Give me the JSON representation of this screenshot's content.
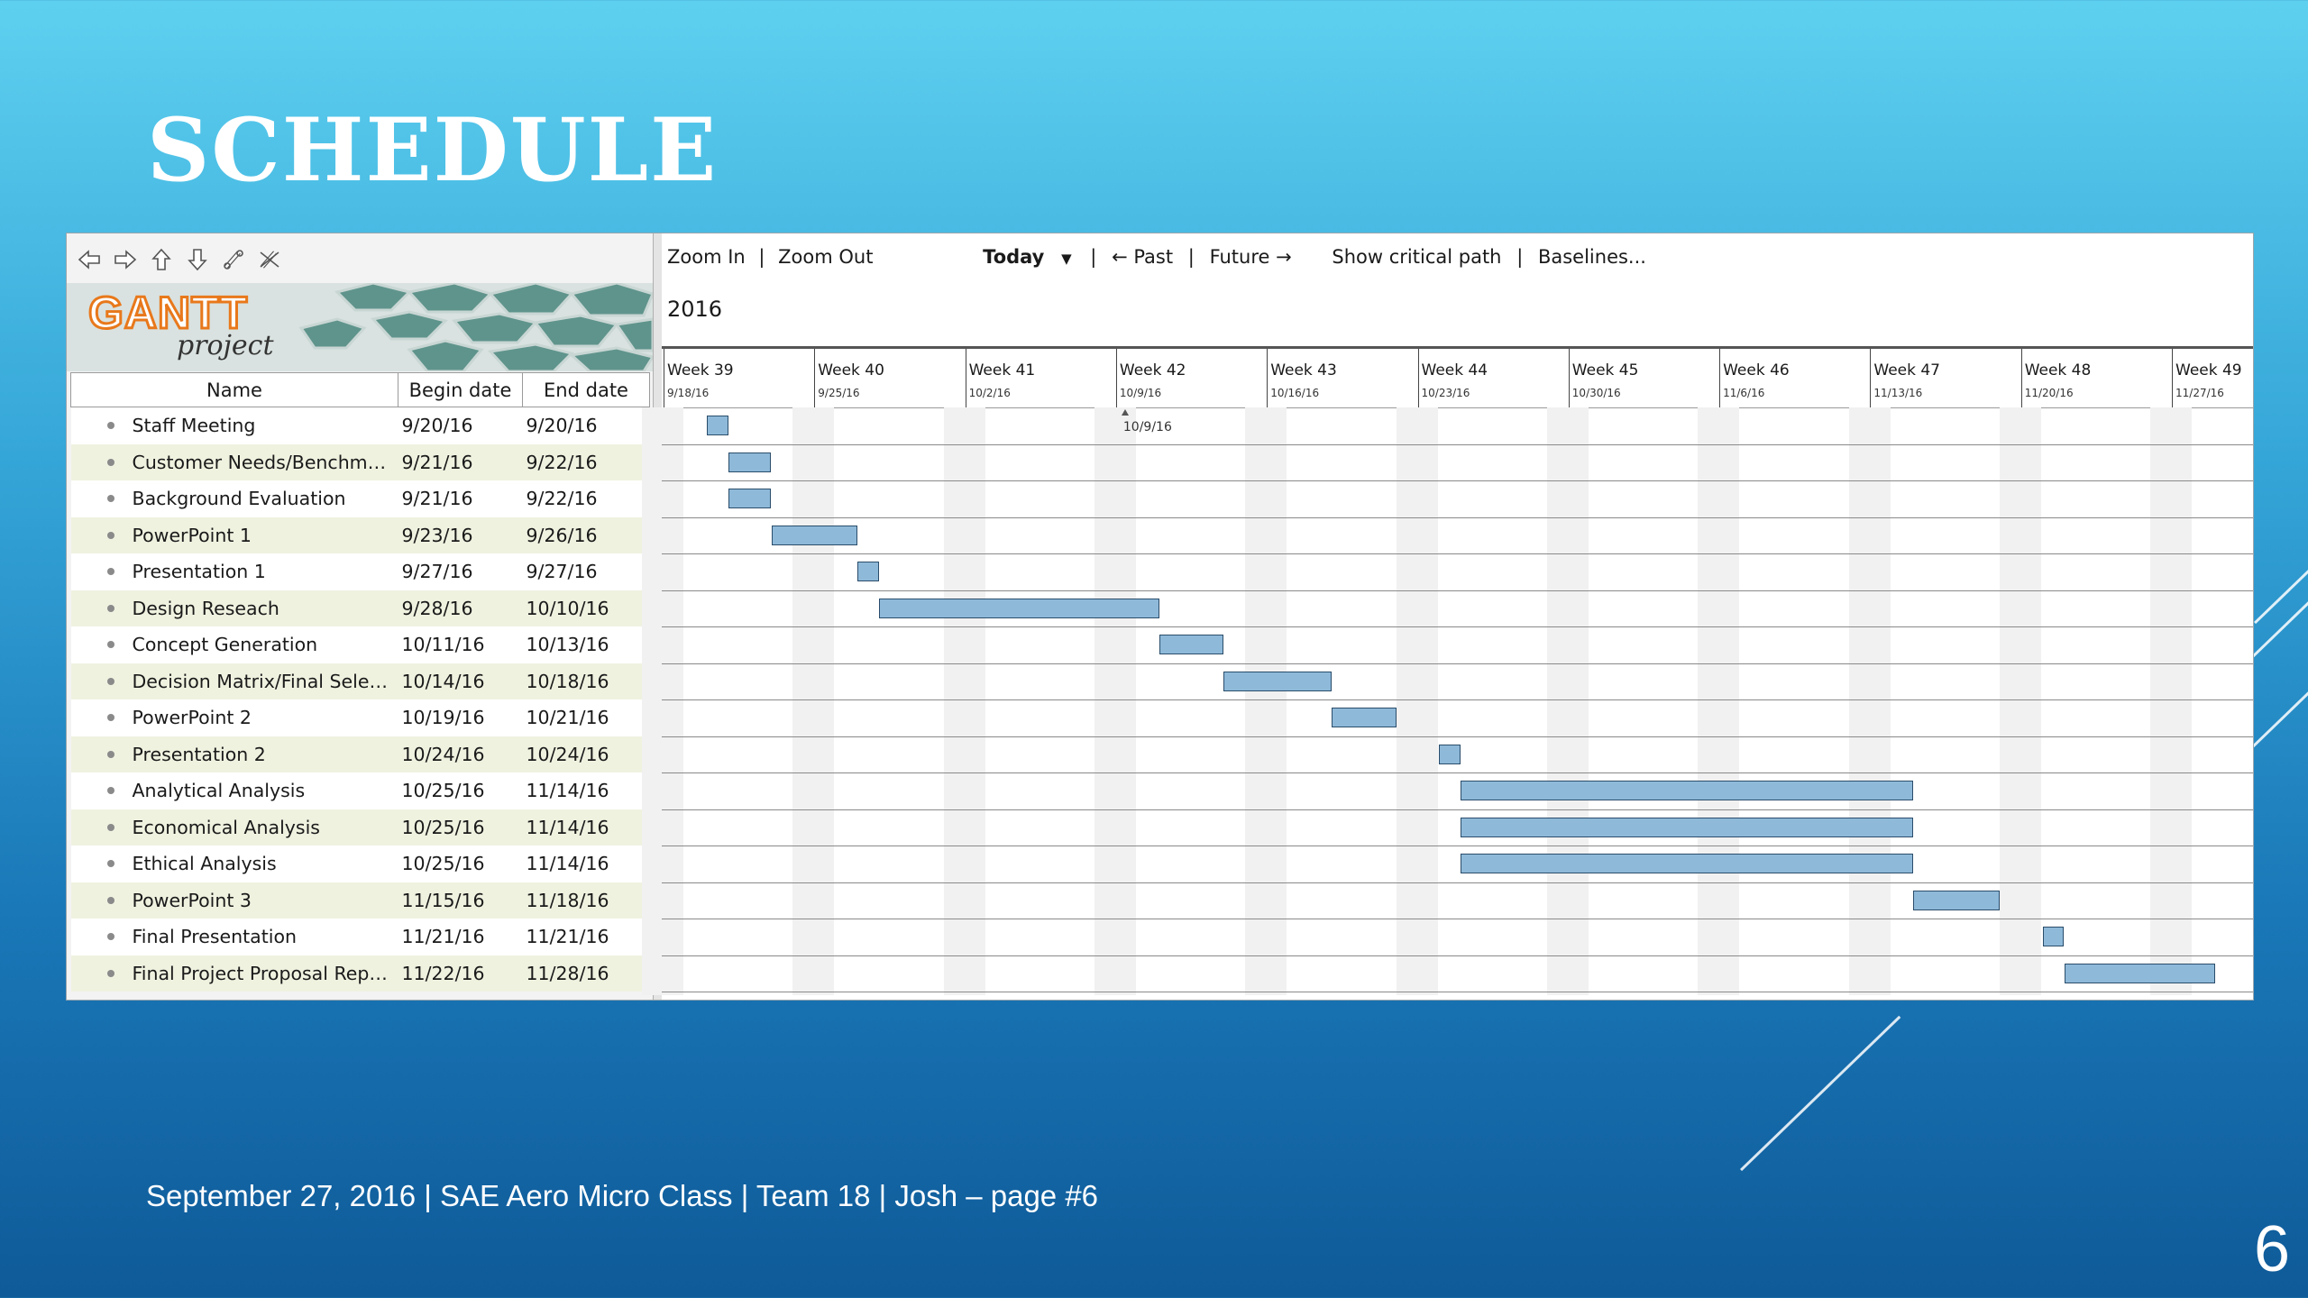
{
  "slide": {
    "title": "SCHEDULE",
    "footer": "September 27, 2016  |  SAE Aero Micro Class  |  Team 18 | Josh – page #6",
    "page_number": "6"
  },
  "gantt": {
    "logo": {
      "main": "GANTT",
      "sub": "project"
    },
    "toolbar_icons": [
      "left-arrow-icon",
      "right-arrow-icon",
      "up-arrow-icon",
      "down-arrow-icon",
      "link-icon",
      "unlink-icon"
    ],
    "view_toolbar": {
      "zoom_in": "Zoom In",
      "sep1": "|",
      "zoom_out": "Zoom Out",
      "today": "Today",
      "sep2": "|",
      "past": "← Past",
      "sep3": "|",
      "future": "Future →",
      "critical_path": "Show critical path",
      "sep4": "|",
      "baselines": "Baselines..."
    },
    "year": "2016",
    "columns": {
      "name": "Name",
      "begin": "Begin date",
      "end": "End date"
    },
    "weeks": [
      {
        "label": "Week 39",
        "date": "9/18/16"
      },
      {
        "label": "Week 40",
        "date": "9/25/16"
      },
      {
        "label": "Week 41",
        "date": "10/2/16"
      },
      {
        "label": "Week 42",
        "date": "10/9/16"
      },
      {
        "label": "Week 43",
        "date": "10/16/16"
      },
      {
        "label": "Week 44",
        "date": "10/23/16"
      },
      {
        "label": "Week 45",
        "date": "10/30/16"
      },
      {
        "label": "Week 46",
        "date": "11/6/16"
      },
      {
        "label": "Week 47",
        "date": "11/13/16"
      },
      {
        "label": "Week 48",
        "date": "11/20/16"
      },
      {
        "label": "Week 49",
        "date": "11/27/16"
      }
    ],
    "today_marker": "10/9/16",
    "tasks": [
      {
        "name": "Staff Meeting",
        "begin": "9/20/16",
        "end": "9/20/16"
      },
      {
        "name": "Customer Needs/Benchmar...",
        "begin": "9/21/16",
        "end": "9/22/16"
      },
      {
        "name": "Background Evaluation",
        "begin": "9/21/16",
        "end": "9/22/16"
      },
      {
        "name": "PowerPoint 1",
        "begin": "9/23/16",
        "end": "9/26/16"
      },
      {
        "name": "Presentation 1",
        "begin": "9/27/16",
        "end": "9/27/16"
      },
      {
        "name": "Design Reseach",
        "begin": "9/28/16",
        "end": "10/10/16"
      },
      {
        "name": "Concept Generation",
        "begin": "10/11/16",
        "end": "10/13/16"
      },
      {
        "name": "Decision Matrix/Final Selecti...",
        "begin": "10/14/16",
        "end": "10/18/16"
      },
      {
        "name": "PowerPoint 2",
        "begin": "10/19/16",
        "end": "10/21/16"
      },
      {
        "name": "Presentation 2",
        "begin": "10/24/16",
        "end": "10/24/16"
      },
      {
        "name": "Analytical Analysis",
        "begin": "10/25/16",
        "end": "11/14/16"
      },
      {
        "name": "Economical Analysis",
        "begin": "10/25/16",
        "end": "11/14/16"
      },
      {
        "name": "Ethical Analysis",
        "begin": "10/25/16",
        "end": "11/14/16"
      },
      {
        "name": "PowerPoint 3",
        "begin": "11/15/16",
        "end": "11/18/16"
      },
      {
        "name": "Final Presentation",
        "begin": "11/21/16",
        "end": "11/21/16"
      },
      {
        "name": "Final Project Proposal Report",
        "begin": "11/22/16",
        "end": "11/28/16"
      }
    ],
    "colors": {
      "bar_fill": "#8fb9d9",
      "bar_border": "#2a4d6b",
      "logo_orange": "#e8781b",
      "alt_row": "#f0f2e0"
    }
  }
}
